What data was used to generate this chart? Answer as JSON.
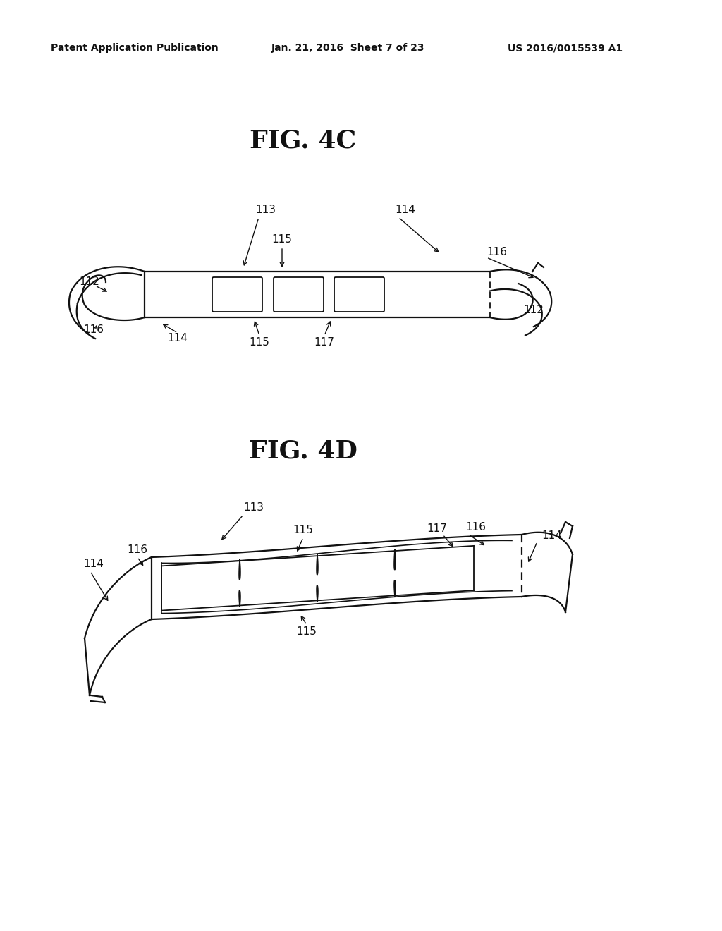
{
  "background_color": "#ffffff",
  "header_text": "Patent Application Publication",
  "header_date": "Jan. 21, 2016  Sheet 7 of 23",
  "header_patent": "US 2016/0015539 A1",
  "fig4c_title": "FIG. 4C",
  "fig4d_title": "FIG. 4D",
  "line_color": "#111111",
  "line_width": 1.6,
  "label_fontsize": 11,
  "title_fontsize": 26,
  "header_fontsize": 10
}
